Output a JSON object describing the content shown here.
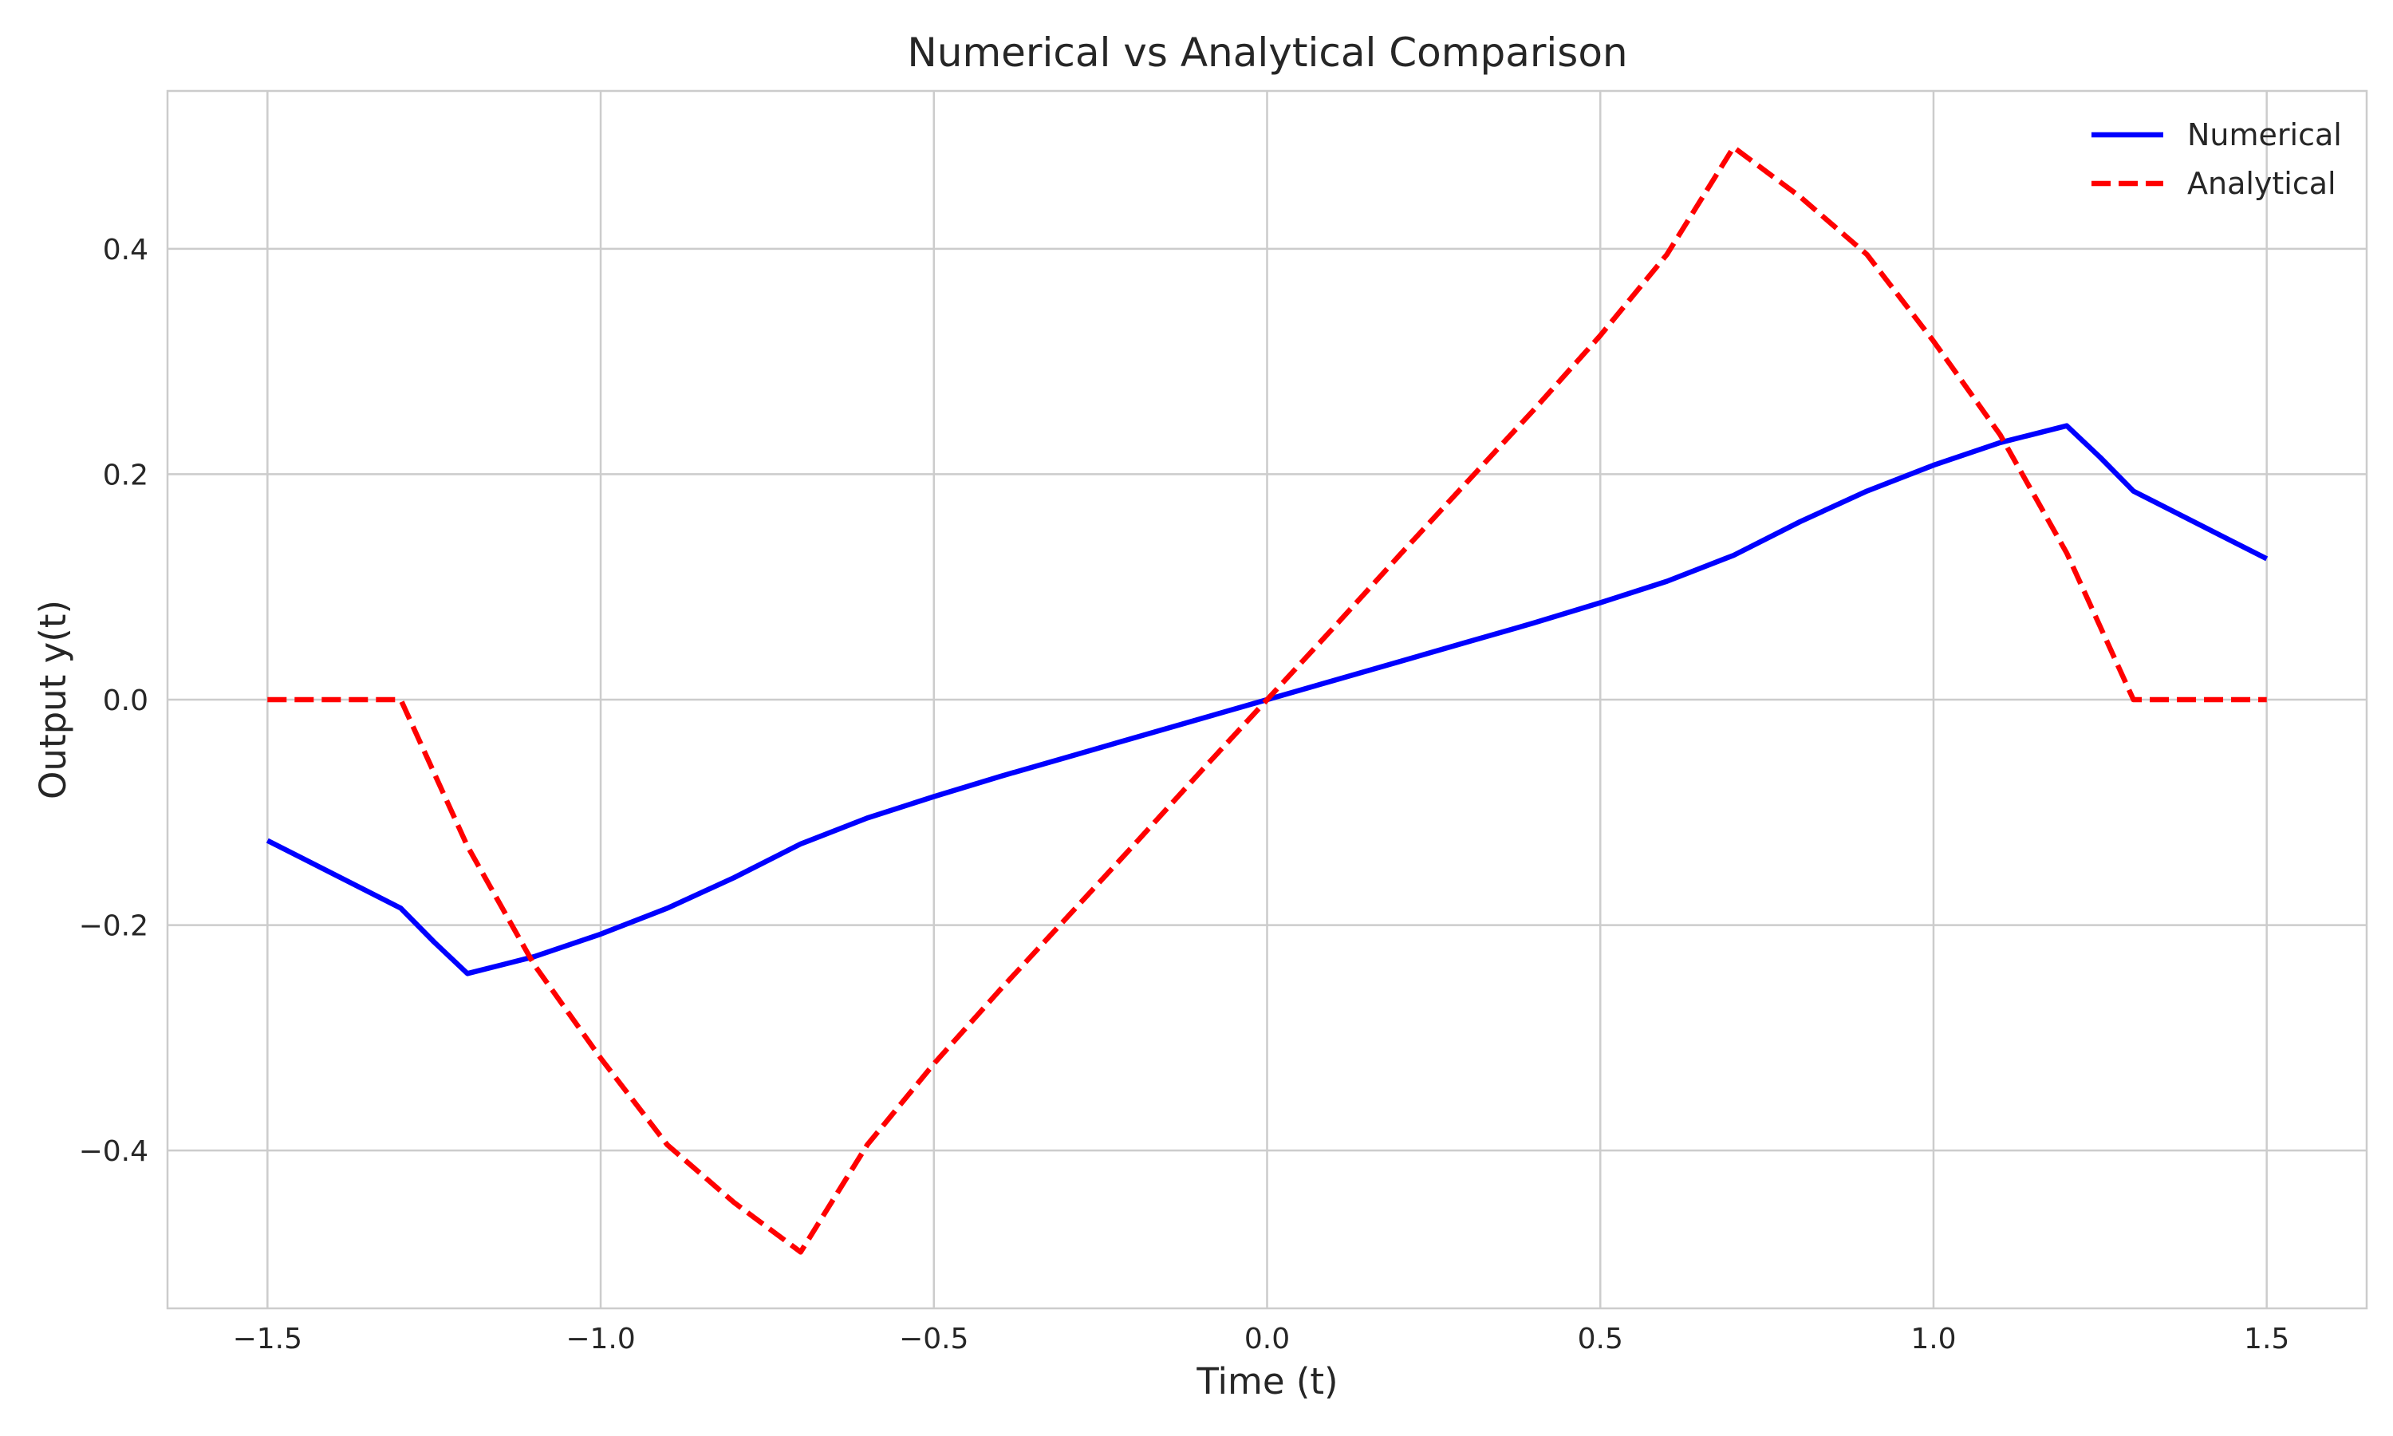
{
  "chart_data": {
    "type": "line",
    "title": "Numerical vs Analytical Comparison",
    "xlabel": "Time (t)",
    "ylabel": "Output y(t)",
    "xlim": [
      -1.65,
      1.65
    ],
    "ylim": [
      -0.54,
      0.54
    ],
    "xticks": [
      -1.5,
      -1.0,
      -0.5,
      0.0,
      0.5,
      1.0,
      1.5
    ],
    "xtick_labels": [
      "−1.5",
      "−1.0",
      "−0.5",
      "0.0",
      "0.5",
      "1.0",
      "1.5"
    ],
    "yticks": [
      -0.4,
      -0.2,
      0.0,
      0.2,
      0.4
    ],
    "ytick_labels": [
      "−0.4",
      "−0.2",
      "0.0",
      "0.2",
      "0.4"
    ],
    "grid": true,
    "legend": "top-right",
    "series": [
      {
        "name": "Numerical",
        "color": "#0000ff",
        "style": "solid",
        "x": [
          -1.5,
          -1.4,
          -1.3,
          -1.25,
          -1.2,
          -1.1,
          -1.0,
          -0.9,
          -0.8,
          -0.7,
          -0.6,
          -0.5,
          -0.4,
          -0.3,
          -0.2,
          -0.1,
          0.0,
          0.1,
          0.2,
          0.3,
          0.4,
          0.5,
          0.6,
          0.7,
          0.8,
          0.9,
          1.0,
          1.1,
          1.2,
          1.25,
          1.3,
          1.4,
          1.5
        ],
        "y": [
          -0.125,
          -0.155,
          -0.185,
          -0.215,
          -0.243,
          -0.228,
          -0.208,
          -0.185,
          -0.158,
          -0.128,
          -0.105,
          -0.086,
          -0.068,
          -0.051,
          -0.034,
          -0.017,
          0.0,
          0.017,
          0.034,
          0.051,
          0.068,
          0.086,
          0.105,
          0.128,
          0.158,
          0.185,
          0.208,
          0.228,
          0.243,
          0.215,
          0.185,
          0.155,
          0.125
        ]
      },
      {
        "name": "Analytical",
        "color": "#ff0000",
        "style": "dashed",
        "x": [
          -1.5,
          -1.3,
          -1.2,
          -1.1,
          -1.0,
          -0.9,
          -0.8,
          -0.7,
          -0.6,
          -0.5,
          -0.4,
          -0.3,
          -0.2,
          -0.1,
          0.0,
          0.1,
          0.2,
          0.3,
          0.4,
          0.5,
          0.6,
          0.7,
          0.8,
          0.9,
          1.0,
          1.1,
          1.2,
          1.3,
          1.5
        ],
        "y": [
          0.0,
          0.0,
          -0.13,
          -0.235,
          -0.318,
          -0.395,
          -0.446,
          -0.49,
          -0.395,
          -0.323,
          -0.257,
          -0.193,
          -0.129,
          -0.064,
          0.0,
          0.064,
          0.129,
          0.193,
          0.257,
          0.323,
          0.395,
          0.49,
          0.446,
          0.395,
          0.318,
          0.235,
          0.13,
          0.0,
          0.0
        ]
      }
    ]
  }
}
